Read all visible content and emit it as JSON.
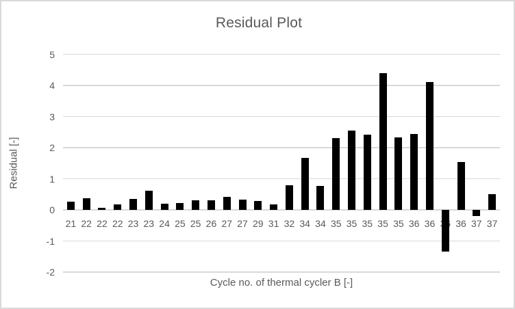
{
  "chart": {
    "title": "Residual Plot",
    "y_axis_title": "Residual [-]",
    "x_axis_title": "Cycle no. of thermal cycler B [-]"
  },
  "chart_data": {
    "type": "bar",
    "title": "Residual Plot",
    "xlabel": "Cycle no. of thermal cycler B [-]",
    "ylabel": "Residual [-]",
    "categories": [
      "21",
      "22",
      "22",
      "22",
      "23",
      "23",
      "24",
      "25",
      "25",
      "26",
      "27",
      "27",
      "29",
      "31",
      "32",
      "34",
      "34",
      "35",
      "35",
      "35",
      "35",
      "35",
      "36",
      "36",
      "36",
      "36",
      "37",
      "37"
    ],
    "values": [
      0.27,
      0.37,
      0.07,
      0.18,
      0.35,
      0.62,
      0.2,
      0.22,
      0.3,
      0.3,
      0.42,
      0.34,
      0.28,
      0.18,
      0.8,
      1.67,
      0.78,
      2.3,
      2.55,
      2.42,
      4.4,
      2.33,
      2.45,
      4.12,
      -1.35,
      1.53,
      -0.2,
      0.5
    ],
    "ylim": [
      -2,
      5
    ],
    "yticks": [
      5,
      4,
      3,
      2,
      1,
      0,
      -1,
      -2
    ],
    "grid": true,
    "legend": false,
    "bar_color": "#000000",
    "gridline_color": "#d9d9d9",
    "text_color": "#595959",
    "border_color": "#d9d9d9",
    "background": "#ffffff"
  }
}
